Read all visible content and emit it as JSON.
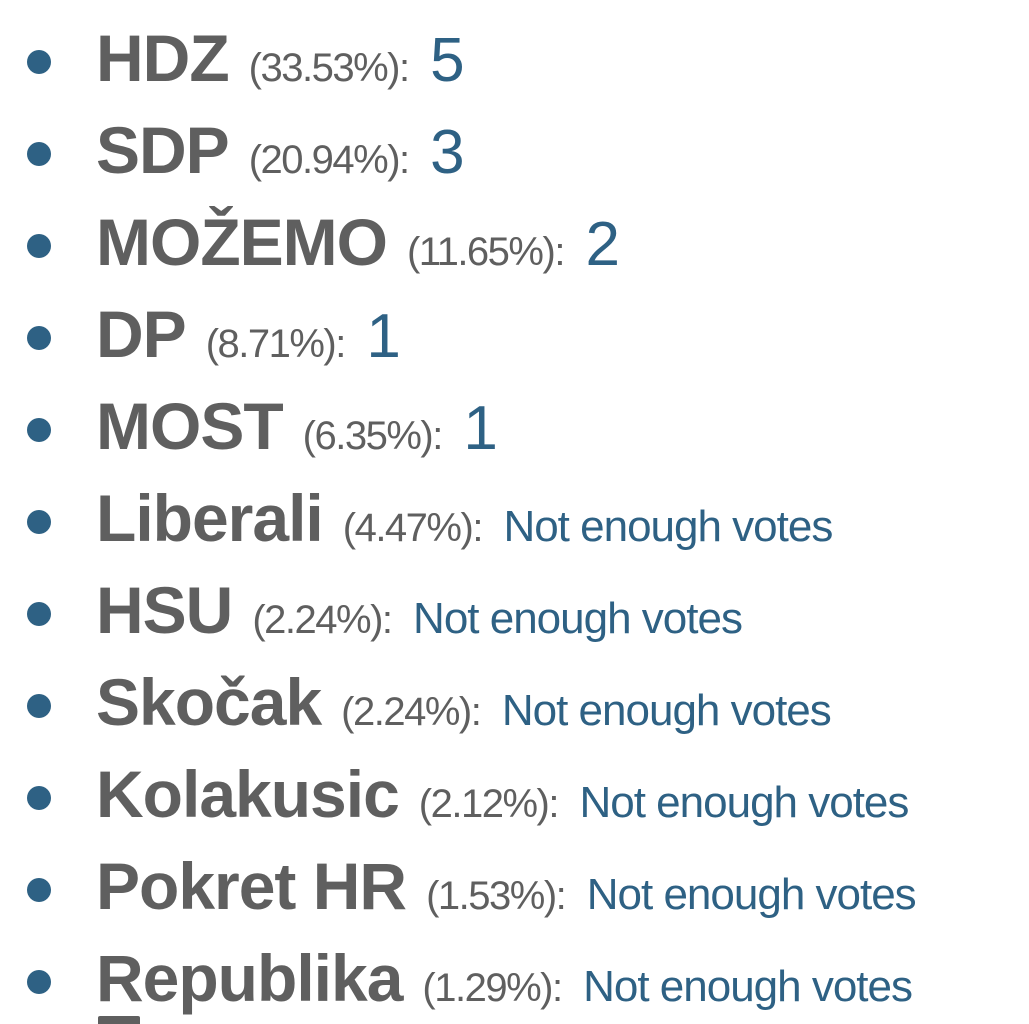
{
  "results": [
    {
      "party": "HDZ",
      "pct": "(33.53%)",
      "seats": "5",
      "kind": "num"
    },
    {
      "party": "SDP",
      "pct": "(20.94%)",
      "seats": "3",
      "kind": "num"
    },
    {
      "party": "MOŽEMO",
      "pct": "(11.65%)",
      "seats": "2",
      "kind": "num"
    },
    {
      "party": "DP",
      "pct": "(8.71%)",
      "seats": "1",
      "kind": "num"
    },
    {
      "party": "MOST",
      "pct": "(6.35%)",
      "seats": "1",
      "kind": "num"
    },
    {
      "party": "Liberali",
      "pct": "(4.47%)",
      "seats": "Not enough votes",
      "kind": "txt"
    },
    {
      "party": "HSU",
      "pct": "(2.24%)",
      "seats": "Not enough votes",
      "kind": "txt"
    },
    {
      "party": "Skočak",
      "pct": "(2.24%)",
      "seats": "Not enough votes",
      "kind": "txt"
    },
    {
      "party": "Kolakusic",
      "pct": "(2.12%)",
      "seats": "Not enough votes",
      "kind": "txt"
    },
    {
      "party": "Pokret HR",
      "pct": "(1.53%)",
      "seats": "Not enough votes",
      "kind": "txt"
    },
    {
      "party": "Republika",
      "pct": "(1.29%)",
      "seats": "Not enough votes",
      "kind": "txt"
    }
  ],
  "colon": ":",
  "colors": {
    "party_text": "#5f5f5f",
    "accent": "#2e6184",
    "background": "#ffffff"
  }
}
